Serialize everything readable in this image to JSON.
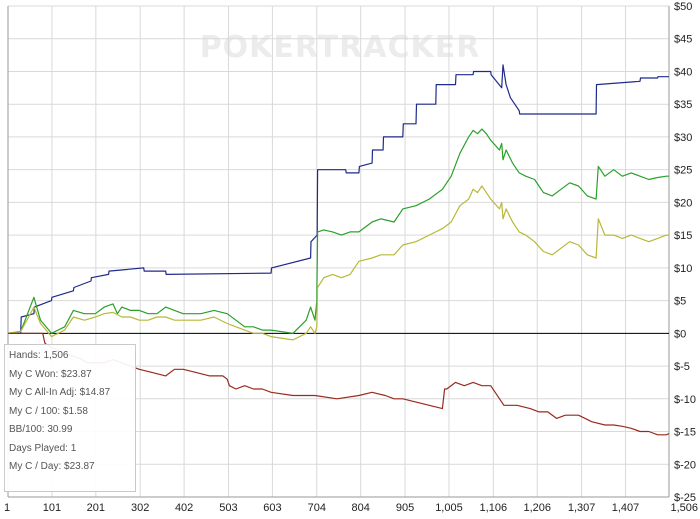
{
  "watermark": "POKERTRACKER",
  "stats": [
    "Hands: 1,506",
    "My C Won: $23.87",
    "My C All-In Adj: $14.87",
    "My C / 100: $1.58",
    "BB/100: 30.99",
    "Days Played: 1",
    "My C / Day: $23.87"
  ],
  "chart_data": {
    "type": "line",
    "title": "",
    "xlabel": "",
    "ylabel": "",
    "xlim": [
      1,
      1506
    ],
    "ylim": [
      -25,
      50
    ],
    "x_ticks": [
      {
        "value": 1,
        "label": "1"
      },
      {
        "value": 101,
        "label": "101"
      },
      {
        "value": 201,
        "label": "201"
      },
      {
        "value": 302,
        "label": "302"
      },
      {
        "value": 402,
        "label": "402"
      },
      {
        "value": 503,
        "label": "503"
      },
      {
        "value": 603,
        "label": "603"
      },
      {
        "value": 704,
        "label": "704"
      },
      {
        "value": 804,
        "label": "804"
      },
      {
        "value": 905,
        "label": "905"
      },
      {
        "value": 1005,
        "label": "1,005"
      },
      {
        "value": 1106,
        "label": "1,106"
      },
      {
        "value": 1206,
        "label": "1,206"
      },
      {
        "value": 1307,
        "label": "1,307"
      },
      {
        "value": 1407,
        "label": "1,407"
      },
      {
        "value": 1506,
        "label": "1,506"
      }
    ],
    "y_ticks": [
      {
        "value": 50,
        "label": "$50"
      },
      {
        "value": 45,
        "label": "$45"
      },
      {
        "value": 40,
        "label": "$40"
      },
      {
        "value": 35,
        "label": "$35"
      },
      {
        "value": 30,
        "label": "$30"
      },
      {
        "value": 25,
        "label": "$25"
      },
      {
        "value": 20,
        "label": "$20"
      },
      {
        "value": 15,
        "label": "$15"
      },
      {
        "value": 10,
        "label": "$10"
      },
      {
        "value": 5,
        "label": "$5"
      },
      {
        "value": 0,
        "label": "$0"
      },
      {
        "value": -5,
        "label": "$-5"
      },
      {
        "value": -10,
        "label": "$-10"
      },
      {
        "value": -15,
        "label": "$-15"
      },
      {
        "value": -20,
        "label": "$-20"
      },
      {
        "value": -25,
        "label": "$-25"
      }
    ],
    "grid": true,
    "zero_line": true,
    "colors": {
      "grid": "#d9d9d9",
      "axis": "#000000"
    },
    "series": [
      {
        "color": "#1f2a8a",
        "x": [
          1,
          30,
          31,
          60,
          61,
          100,
          101,
          150,
          151,
          190,
          191,
          230,
          231,
          310,
          311,
          360,
          361,
          600,
          601,
          690,
          691,
          705,
          706,
          770,
          771,
          800,
          801,
          830,
          831,
          855,
          856,
          900,
          901,
          930,
          931,
          975,
          976,
          1020,
          1021,
          1060,
          1061,
          1100,
          1101,
          1125,
          1128,
          1135,
          1145,
          1165,
          1166,
          1340,
          1341,
          1440,
          1441,
          1480,
          1481,
          1506
        ],
        "y": [
          0,
          0,
          2.5,
          3,
          4,
          5,
          5.5,
          6.5,
          7,
          8,
          8.5,
          9,
          9.5,
          10,
          9.5,
          9.5,
          9,
          9.2,
          10,
          11.5,
          14,
          15,
          25,
          25,
          24.5,
          24.5,
          25.5,
          26,
          28,
          28,
          30,
          30,
          32,
          32,
          35,
          35,
          38,
          38,
          39.5,
          39.5,
          40,
          40,
          39.5,
          37.5,
          41,
          38,
          36,
          34,
          33.5,
          33.5,
          38,
          38.5,
          39,
          39,
          39.2,
          39.2
        ]
      },
      {
        "color": "#2aa02a",
        "x": [
          1,
          30,
          40,
          60,
          75,
          100,
          130,
          150,
          175,
          200,
          220,
          240,
          250,
          260,
          280,
          300,
          320,
          340,
          360,
          380,
          400,
          440,
          470,
          500,
          520,
          540,
          560,
          580,
          600,
          650,
          680,
          690,
          700,
          704,
          706,
          720,
          740,
          760,
          780,
          800,
          830,
          850,
          880,
          900,
          930,
          960,
          990,
          1010,
          1030,
          1050,
          1060,
          1070,
          1080,
          1090,
          1100,
          1120,
          1125,
          1128,
          1135,
          1150,
          1165,
          1180,
          1200,
          1220,
          1240,
          1260,
          1280,
          1300,
          1320,
          1340,
          1345,
          1360,
          1380,
          1400,
          1420,
          1440,
          1460,
          1480,
          1500,
          1506
        ],
        "y": [
          0,
          0.3,
          2,
          5.5,
          2,
          0,
          1,
          3.5,
          3,
          3,
          4,
          4.5,
          3,
          4,
          3.5,
          3.5,
          3,
          3,
          4,
          3.5,
          3,
          3,
          3.5,
          3,
          2,
          1,
          1,
          0.5,
          0.5,
          0,
          2,
          4,
          2,
          5,
          15.5,
          15.8,
          15.5,
          15,
          15.5,
          15.5,
          17,
          17.5,
          17,
          19,
          19.5,
          20.5,
          22,
          24,
          27.5,
          30,
          31,
          30.5,
          31.2,
          30.5,
          29.5,
          28,
          29,
          26.5,
          28,
          26,
          24.5,
          24,
          23.5,
          21.5,
          21,
          22,
          23,
          22.5,
          21,
          20.5,
          25.5,
          24,
          25,
          24,
          24.5,
          24,
          23.5,
          23.8,
          24,
          24
        ]
      },
      {
        "color": "#b8b83a",
        "x": [
          1,
          30,
          40,
          60,
          75,
          100,
          130,
          150,
          175,
          200,
          220,
          240,
          260,
          280,
          300,
          320,
          340,
          360,
          380,
          400,
          440,
          470,
          500,
          520,
          540,
          560,
          580,
          600,
          650,
          680,
          690,
          700,
          704,
          706,
          720,
          740,
          760,
          780,
          800,
          830,
          850,
          880,
          900,
          930,
          960,
          990,
          1010,
          1030,
          1050,
          1060,
          1070,
          1080,
          1090,
          1100,
          1120,
          1125,
          1128,
          1135,
          1150,
          1165,
          1180,
          1200,
          1220,
          1240,
          1260,
          1280,
          1300,
          1320,
          1340,
          1345,
          1360,
          1380,
          1400,
          1420,
          1440,
          1460,
          1480,
          1500,
          1506
        ],
        "y": [
          0,
          0.3,
          1.5,
          4,
          1.5,
          -0.5,
          0.5,
          2.5,
          2,
          2.5,
          3,
          3.2,
          2.5,
          2.5,
          2,
          2,
          2.5,
          2.5,
          2,
          2,
          2,
          2.5,
          1.5,
          1,
          0.5,
          0,
          0,
          -0.5,
          -1,
          0,
          1,
          0,
          1,
          7,
          8.5,
          9,
          8.5,
          9,
          11,
          11.5,
          12,
          12,
          13.5,
          14,
          15,
          16,
          17,
          19.5,
          20.5,
          22,
          21.5,
          22.5,
          21.5,
          20.5,
          19,
          20,
          17.5,
          19,
          17,
          15.5,
          15,
          14,
          12.5,
          12,
          13,
          14,
          13.5,
          12,
          11.5,
          17.5,
          15,
          15,
          14.5,
          15,
          14.5,
          14,
          14.5,
          15,
          15
        ]
      },
      {
        "color": "#9a2a1f",
        "x": [
          1,
          80,
          85,
          95,
          110,
          130,
          150,
          170,
          180,
          200,
          220,
          240,
          260,
          280,
          300,
          330,
          360,
          380,
          400,
          430,
          460,
          490,
          500,
          505,
          520,
          540,
          560,
          580,
          600,
          650,
          700,
          750,
          800,
          830,
          860,
          880,
          900,
          930,
          960,
          990,
          995,
          1000,
          1020,
          1040,
          1060,
          1080,
          1100,
          1130,
          1160,
          1190,
          1210,
          1230,
          1250,
          1270,
          1300,
          1330,
          1360,
          1380,
          1400,
          1420,
          1440,
          1460,
          1480,
          1500,
          1506
        ],
        "y": [
          0,
          0,
          -1.5,
          -2,
          -2.5,
          -3,
          -3.5,
          -4,
          -4.5,
          -4.5,
          -4.5,
          -4,
          -4.5,
          -5,
          -5.5,
          -6,
          -6.5,
          -5.5,
          -5.5,
          -6,
          -6.5,
          -6.5,
          -7,
          -8,
          -8.5,
          -8,
          -8.5,
          -8.5,
          -9,
          -9.5,
          -9.5,
          -10,
          -9.5,
          -9,
          -9.5,
          -10,
          -10,
          -10.5,
          -11,
          -11.5,
          -8.5,
          -8.5,
          -7.5,
          -8,
          -7.5,
          -8,
          -8,
          -11,
          -11,
          -11.5,
          -12,
          -12,
          -13,
          -12.5,
          -12.5,
          -13.5,
          -14,
          -14,
          -14.2,
          -14.5,
          -15,
          -15,
          -15.5,
          -15.5,
          -15.3
        ]
      }
    ]
  }
}
